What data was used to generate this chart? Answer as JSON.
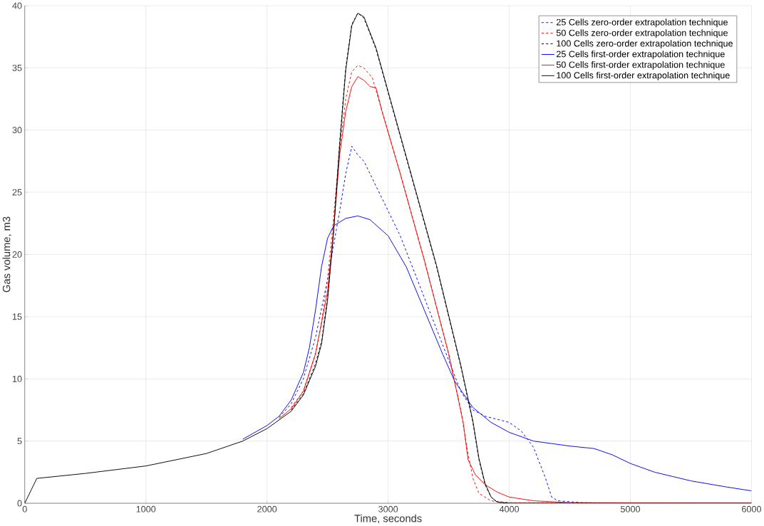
{
  "chart_data": {
    "type": "line",
    "xlabel": "Time, seconds",
    "ylabel": "Gas volume, m3",
    "xlim": [
      0,
      6000
    ],
    "ylim": [
      0,
      40
    ],
    "xticks": [
      0,
      1000,
      2000,
      3000,
      4000,
      5000,
      6000
    ],
    "yticks": [
      0,
      5,
      10,
      15,
      20,
      25,
      30,
      35,
      40
    ],
    "grid": true,
    "legend": "top right",
    "marker": "none",
    "series": [
      {
        "name": "25 Cells zero-order extrapolation technique",
        "color": "#0000ff",
        "line_style": "dashed",
        "x": [
          2100,
          2200,
          2300,
          2400,
          2500,
          2600,
          2650,
          2700,
          2750,
          2800,
          2900,
          3000,
          3100,
          3200,
          3300,
          3400,
          3500,
          3600,
          3700,
          3800,
          4000,
          4100,
          4200,
          4300,
          4350,
          4400,
          4600,
          5000,
          6000
        ],
        "values": [
          6.9,
          8.0,
          10,
          13.3,
          18,
          23.5,
          26.5,
          28.7,
          28.0,
          27.5,
          25.5,
          23.5,
          21.5,
          19,
          16.5,
          14,
          11.5,
          9.0,
          7.5,
          7.0,
          6.5,
          5.8,
          4.5,
          2.0,
          0.5,
          0.2,
          0.05,
          0,
          0
        ]
      },
      {
        "name": "50 Cells zero-order extrapolation technique",
        "color": "#ff0000",
        "line_style": "dashed",
        "x": [
          2200,
          2300,
          2400,
          2450,
          2500,
          2550,
          2600,
          2650,
          2700,
          2750,
          2800,
          2870,
          2950,
          3100,
          3300,
          3500,
          3600,
          3650,
          3700,
          3750,
          3850,
          4000,
          6000
        ],
        "values": [
          7.7,
          9,
          12,
          14.5,
          18,
          23,
          28.5,
          32.5,
          34.7,
          35.2,
          35,
          34.2,
          31.5,
          26.5,
          19.5,
          12,
          7.5,
          4.5,
          2.0,
          0.8,
          0.2,
          0.05,
          0
        ]
      },
      {
        "name": "100 Cells zero-order extrapolation technique",
        "color": "#000000",
        "line_style": "dashed",
        "x": [
          2200,
          2300,
          2400,
          2450,
          2500,
          2550,
          2600,
          2650,
          2700,
          2750,
          2800,
          2900,
          3000,
          3200,
          3400,
          3600,
          3700,
          3750,
          3800,
          3850,
          3900,
          4000,
          6000
        ],
        "values": [
          7.5,
          8.8,
          11.2,
          13,
          16.5,
          22,
          29,
          35,
          38.5,
          39.4,
          39,
          36.5,
          33,
          26,
          19,
          11,
          6.5,
          3.5,
          1.5,
          0.5,
          0.1,
          0,
          0
        ]
      },
      {
        "name": "25 Cells first-order extrapolation technique",
        "color": "#0000ff",
        "line_style": "solid",
        "x": [
          1800,
          2000,
          2100,
          2200,
          2300,
          2350,
          2400,
          2450,
          2500,
          2550,
          2650,
          2750,
          2850,
          3000,
          3150,
          3300,
          3450,
          3550,
          3700,
          3850,
          4000,
          4200,
          4500,
          4700,
          4850,
          5000,
          5200,
          5500,
          5800,
          6000
        ],
        "values": [
          5.15,
          6.25,
          7.0,
          8.3,
          10.5,
          12.5,
          15.5,
          19,
          21.3,
          22.3,
          22.9,
          23.1,
          22.8,
          21.5,
          19,
          15.5,
          12,
          9.8,
          7.7,
          6.5,
          5.7,
          5.0,
          4.6,
          4.4,
          3.9,
          3.2,
          2.5,
          1.8,
          1.3,
          1.0
        ]
      },
      {
        "name": "50 Cells first-order extrapolation technique",
        "color": "#ff0000",
        "line_style": "solid",
        "x": [
          2100,
          2200,
          2300,
          2400,
          2500,
          2550,
          2600,
          2650,
          2700,
          2750,
          2800,
          2850,
          2900,
          2950,
          3100,
          3300,
          3500,
          3620,
          3660,
          3720,
          3800,
          3900,
          4000,
          4200,
          4500,
          6000
        ],
        "values": [
          6.8,
          7.6,
          9,
          12,
          17,
          22,
          28,
          31.5,
          33.5,
          34.3,
          34,
          33.5,
          33.4,
          31.5,
          26.5,
          19.5,
          12,
          6.5,
          3.5,
          2.3,
          1.5,
          0.9,
          0.5,
          0.2,
          0.05,
          0
        ]
      },
      {
        "name": "100 Cells first-order extrapolation technique",
        "color": "#000000",
        "line_style": "solid",
        "x": [
          0,
          100,
          500,
          1000,
          1500,
          1800,
          2000,
          2200,
          2300,
          2400,
          2450,
          2500,
          2550,
          2600,
          2650,
          2700,
          2750,
          2800,
          2900,
          3000,
          3200,
          3400,
          3600,
          3700,
          3750,
          3800,
          3850,
          3900,
          4000,
          6000
        ],
        "values": [
          0,
          2,
          2.4,
          3.0,
          4.0,
          5.0,
          6.0,
          7.4,
          8.7,
          11,
          12.8,
          16.3,
          21.8,
          28.8,
          34.8,
          38.4,
          39.4,
          39.1,
          36.6,
          33.1,
          26.1,
          19.1,
          11.1,
          6.6,
          3.6,
          1.6,
          0.5,
          0.1,
          0,
          0
        ]
      }
    ]
  }
}
